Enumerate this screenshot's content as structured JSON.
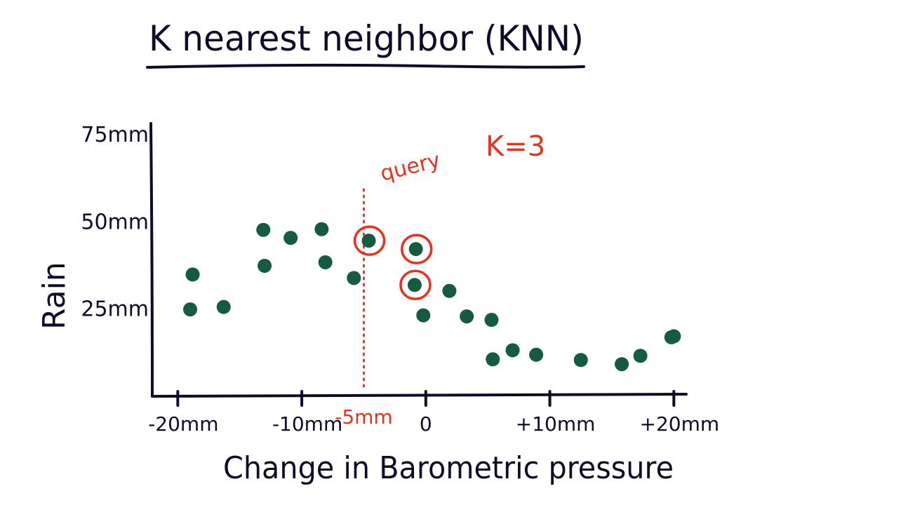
{
  "title": "K nearest neighbor (KNN)",
  "annotations": {
    "k_label": "K=3",
    "query_label": "query",
    "query_tick_label": "-5mm"
  },
  "colors": {
    "ink": "#0d0d2a",
    "point": "#155a42",
    "highlight": "#e8321e"
  },
  "chart_data": {
    "type": "scatter",
    "title": "K nearest neighbor (KNN)",
    "xlabel": "Change in Barometric pressure",
    "ylabel": "Rain",
    "xlim": [
      -22,
      21
    ],
    "ylim": [
      0,
      78
    ],
    "grid": false,
    "x_ticks": [
      {
        "value": -20,
        "label": "-20mm"
      },
      {
        "value": -10,
        "label": "-10mm"
      },
      {
        "value": 0,
        "label": "0"
      },
      {
        "value": 10,
        "label": "+10mm"
      },
      {
        "value": 20,
        "label": "+20mm"
      }
    ],
    "y_ticks": [
      {
        "value": 25,
        "label": "25mm"
      },
      {
        "value": 50,
        "label": "50mm"
      },
      {
        "value": 75,
        "label": "75mm"
      }
    ],
    "points": [
      {
        "x": -19.0,
        "y": 24.5
      },
      {
        "x": -18.8,
        "y": 34.5
      },
      {
        "x": -16.3,
        "y": 25.2
      },
      {
        "x": -13.1,
        "y": 47.3
      },
      {
        "x": -13.0,
        "y": 37.0
      },
      {
        "x": -10.9,
        "y": 45.0
      },
      {
        "x": -8.4,
        "y": 47.5
      },
      {
        "x": -8.1,
        "y": 38.0
      },
      {
        "x": -5.8,
        "y": 33.5
      },
      {
        "x": -4.6,
        "y": 44.2,
        "neighbor": true
      },
      {
        "x": -0.8,
        "y": 41.8,
        "neighbor": true
      },
      {
        "x": -0.9,
        "y": 31.5,
        "neighbor": true
      },
      {
        "x": -0.2,
        "y": 22.8
      },
      {
        "x": 1.9,
        "y": 29.8
      },
      {
        "x": 3.3,
        "y": 22.5
      },
      {
        "x": 5.3,
        "y": 21.5
      },
      {
        "x": 5.4,
        "y": 10.2
      },
      {
        "x": 7.0,
        "y": 12.8
      },
      {
        "x": 8.9,
        "y": 11.5
      },
      {
        "x": 12.5,
        "y": 10.0
      },
      {
        "x": 15.8,
        "y": 8.8
      },
      {
        "x": 17.3,
        "y": 11.2
      },
      {
        "x": 19.8,
        "y": 16.5
      },
      {
        "x": 20.0,
        "y": 16.8
      }
    ],
    "query_x": -5
  }
}
